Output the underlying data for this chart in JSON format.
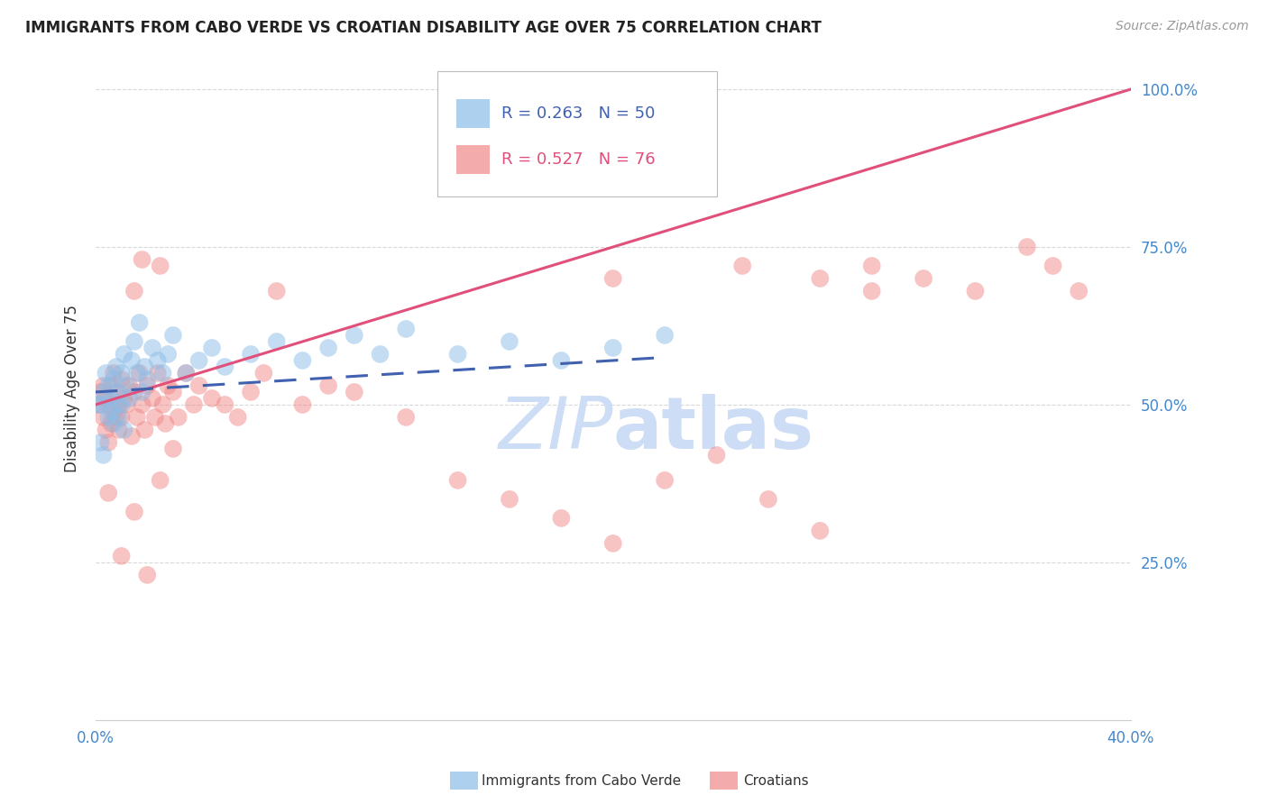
{
  "title": "IMMIGRANTS FROM CABO VERDE VS CROATIAN DISABILITY AGE OVER 75 CORRELATION CHART",
  "source": "Source: ZipAtlas.com",
  "ylabel": "Disability Age Over 75",
  "cabo_verde_R": 0.263,
  "cabo_verde_N": 50,
  "croatian_R": 0.527,
  "croatian_N": 76,
  "cabo_verde_color": "#8bbde8",
  "croatian_color": "#f08888",
  "cabo_verde_line_color": "#4060b0",
  "croatian_line_color": "#e0507a",
  "watermark_color": "#ccddf5",
  "title_color": "#222222",
  "axis_label_color": "#333333",
  "tick_color": "#4488cc",
  "grid_color": "#d8d8d8",
  "cabo_verde_x": [
    0.001,
    0.002,
    0.003,
    0.004,
    0.005,
    0.005,
    0.006,
    0.006,
    0.007,
    0.007,
    0.008,
    0.008,
    0.009,
    0.009,
    0.01,
    0.01,
    0.011,
    0.011,
    0.012,
    0.013,
    0.014,
    0.015,
    0.016,
    0.017,
    0.018,
    0.019,
    0.02,
    0.022,
    0.024,
    0.026,
    0.028,
    0.03,
    0.035,
    0.04,
    0.045,
    0.05,
    0.06,
    0.07,
    0.08,
    0.09,
    0.1,
    0.11,
    0.12,
    0.14,
    0.16,
    0.18,
    0.2,
    0.22,
    0.002,
    0.003
  ],
  "cabo_verde_y": [
    0.5,
    0.5,
    0.52,
    0.55,
    0.48,
    0.53,
    0.51,
    0.49,
    0.54,
    0.47,
    0.56,
    0.5,
    0.48,
    0.52,
    0.55,
    0.5,
    0.58,
    0.46,
    0.53,
    0.51,
    0.57,
    0.6,
    0.55,
    0.63,
    0.52,
    0.56,
    0.54,
    0.59,
    0.57,
    0.55,
    0.58,
    0.61,
    0.55,
    0.57,
    0.59,
    0.56,
    0.58,
    0.6,
    0.57,
    0.59,
    0.61,
    0.58,
    0.62,
    0.58,
    0.6,
    0.57,
    0.59,
    0.61,
    0.44,
    0.42
  ],
  "croatian_x": [
    0.001,
    0.002,
    0.003,
    0.003,
    0.004,
    0.004,
    0.005,
    0.005,
    0.006,
    0.006,
    0.007,
    0.007,
    0.008,
    0.008,
    0.009,
    0.009,
    0.01,
    0.01,
    0.011,
    0.012,
    0.013,
    0.014,
    0.015,
    0.015,
    0.016,
    0.017,
    0.018,
    0.018,
    0.019,
    0.02,
    0.022,
    0.023,
    0.024,
    0.025,
    0.026,
    0.027,
    0.028,
    0.03,
    0.032,
    0.035,
    0.038,
    0.04,
    0.045,
    0.05,
    0.055,
    0.06,
    0.065,
    0.07,
    0.08,
    0.09,
    0.1,
    0.12,
    0.14,
    0.16,
    0.18,
    0.2,
    0.22,
    0.24,
    0.26,
    0.28,
    0.3,
    0.32,
    0.34,
    0.36,
    0.37,
    0.38,
    0.005,
    0.01,
    0.015,
    0.02,
    0.025,
    0.03,
    0.2,
    0.25,
    0.28,
    0.3
  ],
  "croatian_y": [
    0.5,
    0.52,
    0.48,
    0.53,
    0.46,
    0.51,
    0.5,
    0.44,
    0.53,
    0.47,
    0.49,
    0.55,
    0.48,
    0.52,
    0.46,
    0.5,
    0.54,
    0.48,
    0.51,
    0.5,
    0.53,
    0.45,
    0.52,
    0.68,
    0.48,
    0.55,
    0.5,
    0.73,
    0.46,
    0.53,
    0.51,
    0.48,
    0.55,
    0.72,
    0.5,
    0.47,
    0.53,
    0.52,
    0.48,
    0.55,
    0.5,
    0.53,
    0.51,
    0.5,
    0.48,
    0.52,
    0.55,
    0.68,
    0.5,
    0.53,
    0.52,
    0.48,
    0.38,
    0.35,
    0.32,
    0.28,
    0.38,
    0.42,
    0.35,
    0.3,
    0.72,
    0.7,
    0.68,
    0.75,
    0.72,
    0.68,
    0.36,
    0.26,
    0.33,
    0.23,
    0.38,
    0.43,
    0.7,
    0.72,
    0.7,
    0.68
  ],
  "xlim": [
    0.0,
    0.4
  ],
  "ylim": [
    0.0,
    1.05
  ],
  "y_ticks": [
    0.0,
    0.25,
    0.5,
    0.75,
    1.0
  ],
  "y_tick_labels": [
    "",
    "25.0%",
    "50.0%",
    "75.0%",
    "100.0%"
  ],
  "x_ticks": [
    0.0,
    0.05,
    0.1,
    0.15,
    0.2,
    0.25,
    0.3,
    0.35,
    0.4
  ],
  "x_tick_labels": [
    "0.0%",
    "",
    "",
    "",
    "",
    "",
    "",
    "",
    "40.0%"
  ]
}
